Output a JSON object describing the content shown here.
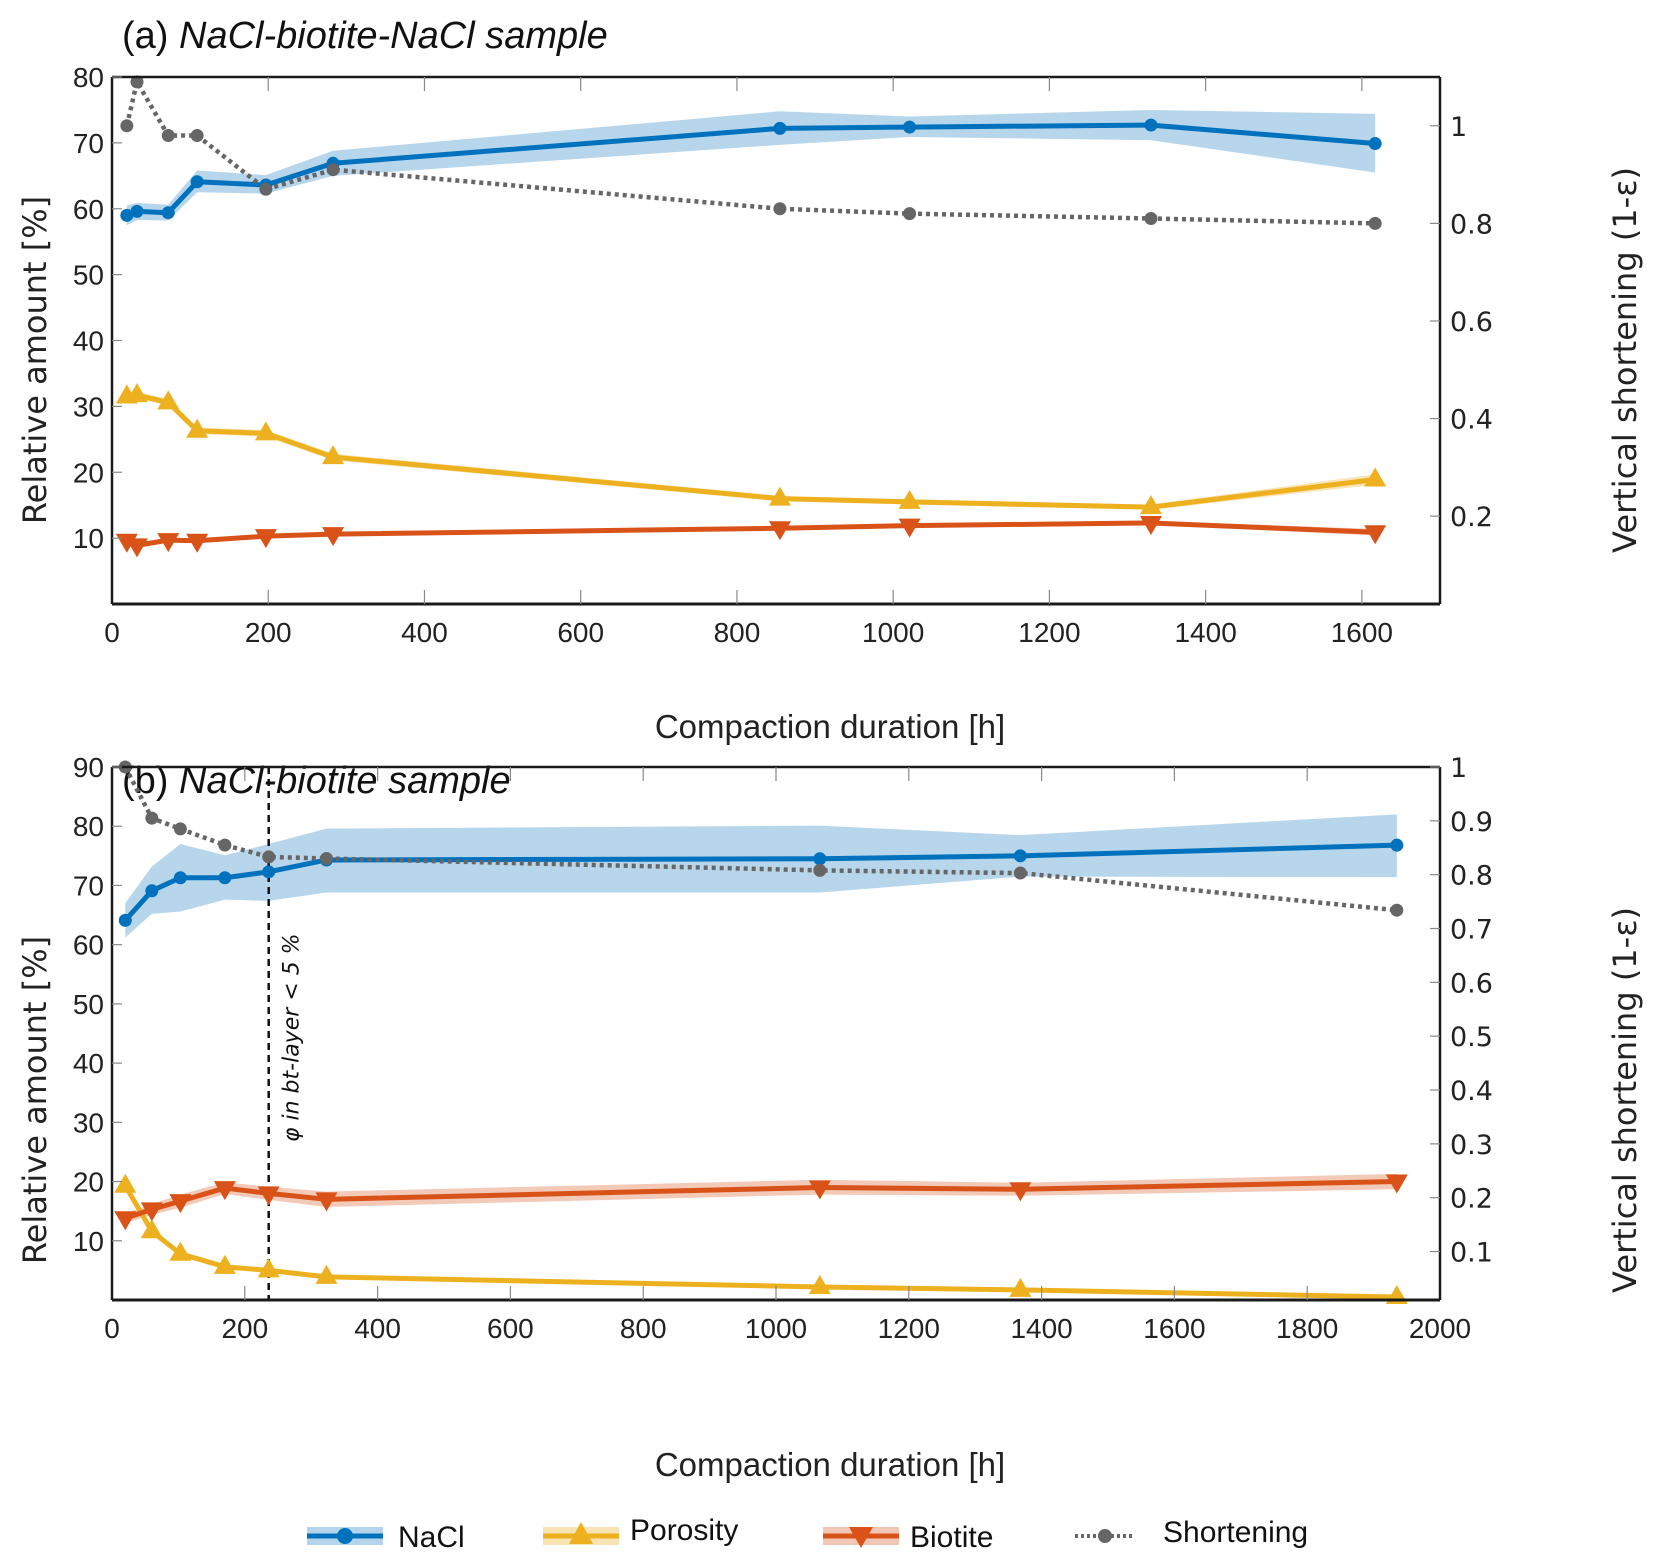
{
  "chart_data": [
    {
      "type": "line",
      "panel": "a",
      "title_prefix": "(a)",
      "title": "NaCl-biotite-NaCl sample",
      "xlabel": "Compaction duration [h]",
      "ylabel": "Relative amount [%]",
      "y2label": "Vertical shortening (1-ε)",
      "xlim": [
        0,
        1700
      ],
      "ylim": [
        0,
        80
      ],
      "y2lim": [
        0.02,
        1.1
      ],
      "xticks": [
        0,
        200,
        400,
        600,
        800,
        1000,
        1200,
        1400,
        1600
      ],
      "xtick_labels": [
        "0",
        "200",
        "400",
        "600",
        "800",
        "1000",
        "1200",
        "1400",
        "1600"
      ],
      "yticks": [
        10,
        20,
        30,
        40,
        50,
        60,
        70,
        80
      ],
      "ytick_labels": [
        "10",
        "20",
        "30",
        "40",
        "50",
        "60",
        "70",
        "80"
      ],
      "y2ticks": [
        0.2,
        0.4,
        0.6,
        0.8,
        1.0
      ],
      "y2tick_labels": [
        "0.2",
        "0.4",
        "0.6",
        "0.8",
        "1"
      ],
      "grid": false,
      "series": [
        {
          "name": "NaCl",
          "axis": "left",
          "marker": "circle",
          "x": [
            19,
            32,
            72,
            109,
            197,
            283,
            855,
            1021,
            1330,
            1617
          ],
          "values": [
            59.0,
            59.6,
            59.4,
            64.1,
            63.6,
            66.9,
            72.2,
            72.4,
            72.7,
            69.9
          ],
          "lower": [
            57.5,
            58.3,
            58.2,
            62.5,
            62.3,
            65.0,
            69.7,
            70.9,
            70.4,
            65.5
          ],
          "upper": [
            60.5,
            60.9,
            60.6,
            65.8,
            65.1,
            68.8,
            74.8,
            74.0,
            75.0,
            74.4
          ]
        },
        {
          "name": "Porosity",
          "axis": "left",
          "marker": "triangle-up",
          "x": [
            19,
            32,
            72,
            109,
            197,
            283,
            855,
            1021,
            1330,
            1617
          ],
          "values": [
            31.5,
            31.7,
            30.6,
            26.3,
            25.9,
            22.3,
            16.0,
            15.5,
            14.7,
            18.9
          ],
          "lower": [
            31.0,
            31.2,
            30.1,
            25.8,
            25.4,
            21.8,
            15.6,
            15.1,
            14.3,
            18.1
          ],
          "upper": [
            32.0,
            32.2,
            31.1,
            26.8,
            26.4,
            22.8,
            16.4,
            15.9,
            15.1,
            19.7
          ]
        },
        {
          "name": "Biotite",
          "axis": "left",
          "marker": "triangle-down",
          "x": [
            19,
            32,
            72,
            109,
            197,
            283,
            855,
            1021,
            1330,
            1617
          ],
          "values": [
            9.6,
            8.9,
            9.7,
            9.6,
            10.3,
            10.6,
            11.5,
            11.9,
            12.3,
            10.9
          ],
          "lower": [
            9.3,
            8.6,
            9.4,
            9.3,
            10.0,
            10.3,
            11.2,
            11.6,
            12.0,
            10.4
          ],
          "upper": [
            9.9,
            9.2,
            10.0,
            9.9,
            10.6,
            10.9,
            11.8,
            12.2,
            12.6,
            11.4
          ]
        },
        {
          "name": "Shortening",
          "axis": "right",
          "marker": "circle",
          "style": "dotted",
          "x": [
            19,
            32,
            72,
            109,
            197,
            283,
            855,
            1021,
            1330,
            1617
          ],
          "values": [
            1.0,
            1.09,
            0.98,
            0.98,
            0.87,
            0.91,
            0.83,
            0.82,
            0.81,
            0.8
          ]
        }
      ]
    },
    {
      "type": "line",
      "panel": "b",
      "title_prefix": "(b)",
      "title": "NaCl-biotite sample",
      "xlabel": "Compaction duration [h]",
      "ylabel": "Relative amount [%]",
      "y2label": "Vertical shortening (1-ε)",
      "xlim": [
        0,
        2000
      ],
      "ylim": [
        0,
        90
      ],
      "y2lim": [
        0.01,
        1.0
      ],
      "xticks": [
        0,
        200,
        400,
        600,
        800,
        1000,
        1200,
        1400,
        1600,
        1800,
        2000
      ],
      "xtick_labels": [
        "0",
        "200",
        "400",
        "600",
        "800",
        "1000",
        "1200",
        "1400",
        "1600",
        "1800",
        "2000"
      ],
      "yticks": [
        10,
        20,
        30,
        40,
        50,
        60,
        70,
        80,
        90
      ],
      "ytick_labels": [
        "10",
        "20",
        "30",
        "40",
        "50",
        "60",
        "70",
        "80",
        "90"
      ],
      "y2ticks": [
        0.1,
        0.2,
        0.3,
        0.4,
        0.5,
        0.6,
        0.7,
        0.8,
        0.9,
        1.0
      ],
      "y2tick_labels": [
        "0.1",
        "0.2",
        "0.3",
        "0.4",
        "0.5",
        "0.6",
        "0.7",
        "0.8",
        "0.9",
        "1"
      ],
      "grid": false,
      "annotation": {
        "type": "vline",
        "x": 236,
        "text": "φ in bt-layer < 5 %"
      },
      "series": [
        {
          "name": "NaCl",
          "axis": "left",
          "marker": "circle",
          "x": [
            20,
            60,
            103,
            170,
            236,
            323,
            1066,
            1368,
            1935
          ],
          "values": [
            64.1,
            69.1,
            71.3,
            71.3,
            72.3,
            74.3,
            74.5,
            75.0,
            76.8
          ],
          "lower": [
            61.2,
            65.2,
            65.6,
            67.6,
            67.4,
            68.8,
            68.8,
            71.5,
            71.4
          ],
          "upper": [
            67.0,
            73.2,
            77.0,
            75.1,
            77.0,
            79.6,
            80.1,
            78.5,
            82.0
          ]
        },
        {
          "name": "Porosity",
          "axis": "left",
          "marker": "triangle-up",
          "x": [
            20,
            60,
            103,
            170,
            236,
            323,
            1066,
            1368,
            1935
          ],
          "values": [
            19.3,
            11.6,
            7.8,
            5.6,
            5.0,
            3.9,
            2.2,
            1.7,
            0.5
          ],
          "lower": [
            19.0,
            11.3,
            7.5,
            5.3,
            4.7,
            3.6,
            1.9,
            1.4,
            0.2
          ],
          "upper": [
            19.6,
            11.9,
            8.1,
            5.9,
            5.3,
            4.2,
            2.5,
            2.0,
            0.8
          ]
        },
        {
          "name": "Biotite",
          "axis": "left",
          "marker": "triangle-down",
          "x": [
            20,
            60,
            103,
            170,
            236,
            323,
            1066,
            1368,
            1935
          ],
          "values": [
            13.8,
            15.3,
            16.7,
            18.9,
            18.0,
            17.0,
            19.0,
            18.7,
            20.0
          ],
          "lower": [
            13.0,
            14.4,
            15.6,
            17.9,
            16.9,
            15.7,
            17.8,
            17.6,
            18.7
          ],
          "upper": [
            14.6,
            16.2,
            17.8,
            19.9,
            19.1,
            18.3,
            20.3,
            19.8,
            21.3
          ]
        },
        {
          "name": "Shortening",
          "axis": "right",
          "marker": "circle",
          "style": "dotted",
          "x": [
            20,
            60,
            103,
            170,
            236,
            323,
            1066,
            1368,
            1935
          ],
          "values": [
            1.0,
            0.905,
            0.885,
            0.855,
            0.833,
            0.83,
            0.808,
            0.803,
            0.734
          ]
        }
      ]
    }
  ],
  "legend": {
    "placement": "bottom-center",
    "items": [
      {
        "label": "NaCl",
        "color": "#0072bd",
        "band": "#b3d4ea",
        "marker": "circle"
      },
      {
        "label": "Porosity",
        "color": "#edb120",
        "band": "#f8e3b3",
        "marker": "triangle-up"
      },
      {
        "label": "Biotite",
        "color": "#d95319",
        "band": "#f2c6b4",
        "marker": "triangle-down"
      },
      {
        "label": "Shortening",
        "color": "#666666",
        "marker": "circle",
        "style": "dotted"
      }
    ]
  },
  "colors": {
    "nacl": "#0072bd",
    "nacl_band": "#b3d4ea",
    "porosity": "#edb120",
    "porosity_band": "#f8e3b3",
    "biotite": "#d95319",
    "biotite_band": "#f2c6b4",
    "shortening": "#666666",
    "axis": "#1a1a1a"
  }
}
